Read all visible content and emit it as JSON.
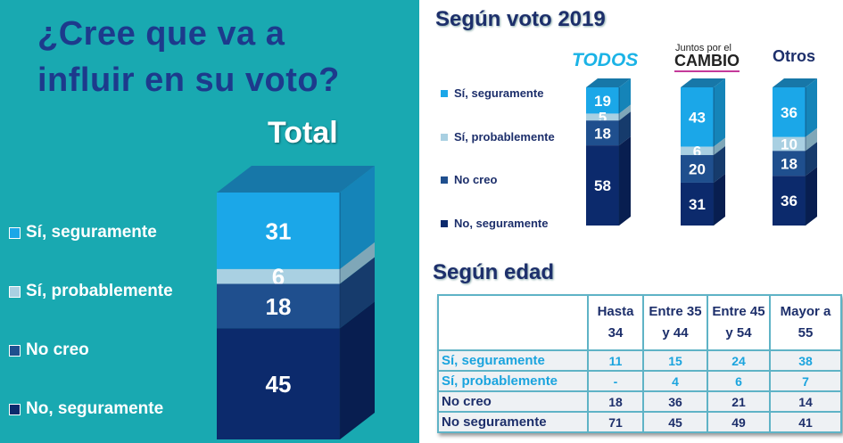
{
  "left": {
    "title_line1": "¿Cree que va a",
    "title_line2": "influir en su voto?",
    "total_label": "Total"
  },
  "legend": [
    "Sí, seguramente",
    "Sí, probablemente",
    "No creo",
    "No, seguramente"
  ],
  "colors": {
    "seguramente": "#1ba7e8",
    "probablemente": "#a9d0e2",
    "no_creo": "#1f4f8e",
    "no_seguramente": "#0c2a6c"
  },
  "right": {
    "title_vote": "Según voto 2019",
    "title_age": "Según edad",
    "party1": "TODOS",
    "party2_small": "Juntos por el",
    "party2": "CAMBIO",
    "party3": "Otros"
  },
  "chart_data": [
    {
      "type": "bar",
      "title": "Total",
      "stacked": true,
      "categories": [
        "Total"
      ],
      "series": [
        {
          "name": "Sí, seguramente",
          "values": [
            31
          ]
        },
        {
          "name": "Sí, probablemente",
          "values": [
            6
          ]
        },
        {
          "name": "No creo",
          "values": [
            18
          ]
        },
        {
          "name": "No, seguramente",
          "values": [
            45
          ]
        }
      ]
    },
    {
      "type": "bar",
      "title": "Según voto 2019",
      "stacked": true,
      "categories": [
        "TODOS",
        "Juntos por el CAMBIO",
        "Otros"
      ],
      "series": [
        {
          "name": "Sí, seguramente",
          "values": [
            19,
            43,
            36
          ]
        },
        {
          "name": "Sí, probablemente",
          "values": [
            5,
            6,
            10
          ]
        },
        {
          "name": "No creo",
          "values": [
            18,
            20,
            18
          ]
        },
        {
          "name": "No, seguramente",
          "values": [
            58,
            31,
            36
          ]
        }
      ]
    },
    {
      "type": "table",
      "title": "Según edad",
      "columns": [
        "Hasta 34",
        "Entre 35 y 44",
        "Entre 45 y 54",
        "Mayor a 55"
      ],
      "rows": [
        {
          "label": "Sí, seguramente",
          "values": [
            "11",
            "15",
            "24",
            "38"
          ]
        },
        {
          "label": "Sí, probablemente",
          "values": [
            "-",
            "4",
            "6",
            "7"
          ]
        },
        {
          "label": "No creo",
          "values": [
            "18",
            "36",
            "21",
            "14"
          ]
        },
        {
          "label": "No seguramente",
          "values": [
            "71",
            "45",
            "49",
            "41"
          ]
        }
      ]
    }
  ]
}
